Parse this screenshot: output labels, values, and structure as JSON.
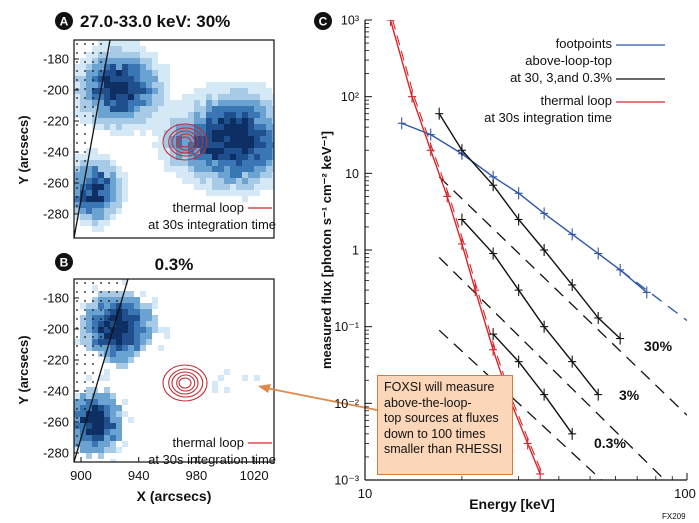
{
  "panelA": {
    "badge": "A",
    "title": "27.0-33.0 keV: 30%",
    "ylabel": "Y (arcsecs)",
    "yticks": [
      "-180",
      "-200",
      "-220",
      "-240",
      "-260",
      "-280"
    ],
    "legend_line1": "thermal loop",
    "legend_line2": "at 30s integration time"
  },
  "panelB": {
    "badge": "B",
    "title": "0.3%",
    "ylabel": "Y (arcsecs)",
    "xlabel": "X (arcsecs)",
    "yticks": [
      "-180",
      "-200",
      "-220",
      "-240",
      "-260",
      "-280"
    ],
    "xticks": [
      "900",
      "940",
      "980",
      "1020"
    ],
    "legend_line1": "thermal loop",
    "legend_line2": "at 30s integration time"
  },
  "panelC": {
    "badge": "C",
    "ylabel": "measured flux  [photon s⁻¹ cm⁻² keV⁻¹]",
    "xlabel": "Energy [keV]",
    "legend": {
      "footpoints": "footpoints",
      "alt": "above-loop-top",
      "alt_pct": "at 30, 3,and 0.3%",
      "thermal": "thermal loop",
      "thermal_sub": "at 30s integration time"
    },
    "line_labels": {
      "p30": "30%",
      "p3": "3%",
      "p03": "0.3%"
    },
    "callout": [
      "FOXSI will measure",
      "above-the-loop-",
      "top sources at fluxes",
      "down to 100 times",
      "smaller than RHESSI"
    ],
    "corner_id": "FX209"
  },
  "colors": {
    "blue": "#2f56a8",
    "red": "#d6262a",
    "black": "#111111",
    "orange": "#e08a4a",
    "contour": "#c0303a"
  },
  "chart_data": {
    "type": "line",
    "xscale": "log",
    "yscale": "log",
    "xlabel": "Energy [keV]",
    "ylabel": "measured flux  [photon s⁻¹ cm⁻² keV⁻¹]",
    "xlim": [
      10,
      100
    ],
    "ylim": [
      0.001,
      1000
    ],
    "xtick_labels": [
      "10",
      "100"
    ],
    "ytick_labels": [
      "10³",
      "10²",
      "10",
      "1",
      "10⁻¹",
      "10⁻²",
      "10⁻³"
    ],
    "series": [
      {
        "name": "footpoints",
        "color": "#2f56a8",
        "dash": "solid",
        "points": [
          [
            13,
            45
          ],
          [
            16,
            32
          ],
          [
            20,
            18
          ],
          [
            25,
            9
          ],
          [
            30,
            5.5
          ],
          [
            36,
            3
          ],
          [
            44,
            1.6
          ],
          [
            53,
            0.9
          ],
          [
            62,
            0.55
          ],
          [
            75,
            0.28
          ]
        ]
      },
      {
        "name": "above-loop-top 30%",
        "color": "#111111",
        "dash": "solid",
        "points": [
          [
            17,
            60
          ],
          [
            20,
            20
          ],
          [
            25,
            7
          ],
          [
            30,
            2.5
          ],
          [
            36,
            1
          ],
          [
            44,
            0.35
          ],
          [
            53,
            0.13
          ],
          [
            62,
            0.07
          ]
        ]
      },
      {
        "name": "above-loop-top 3%",
        "color": "#111111",
        "dash": "solid",
        "points": [
          [
            20,
            2.5
          ],
          [
            25,
            0.9
          ],
          [
            30,
            0.3
          ],
          [
            36,
            0.1
          ],
          [
            44,
            0.035
          ],
          [
            53,
            0.013
          ]
        ]
      },
      {
        "name": "above-loop-top 0.3%",
        "color": "#111111",
        "dash": "solid",
        "points": [
          [
            25,
            0.08
          ],
          [
            30,
            0.035
          ],
          [
            36,
            0.013
          ],
          [
            44,
            0.004
          ]
        ]
      },
      {
        "name": "thermal loop",
        "color": "#d6262a",
        "dash": "solid",
        "points": [
          [
            12,
            1000
          ],
          [
            14,
            100
          ],
          [
            16,
            20
          ],
          [
            18,
            5
          ],
          [
            20,
            1.2
          ],
          [
            22,
            0.3
          ],
          [
            25,
            0.05
          ],
          [
            28,
            0.012
          ],
          [
            32,
            0.003
          ],
          [
            35,
            0.0012
          ]
        ]
      }
    ],
    "extrapolations": [
      {
        "name": "footpoints ext",
        "color": "#2f56a8",
        "from": [
          62,
          0.55
        ],
        "to": [
          100,
          0.12
        ]
      },
      {
        "name": "30% ext",
        "color": "#111111",
        "from": [
          17,
          9
        ],
        "to": [
          100,
          0.007
        ]
      },
      {
        "name": "3% ext",
        "color": "#111111",
        "from": [
          17,
          0.8
        ],
        "to": [
          90,
          0.0008
        ]
      },
      {
        "name": "0.3% ext",
        "color": "#111111",
        "from": [
          17,
          0.09
        ],
        "to": [
          55,
          0.00095
        ]
      }
    ]
  }
}
